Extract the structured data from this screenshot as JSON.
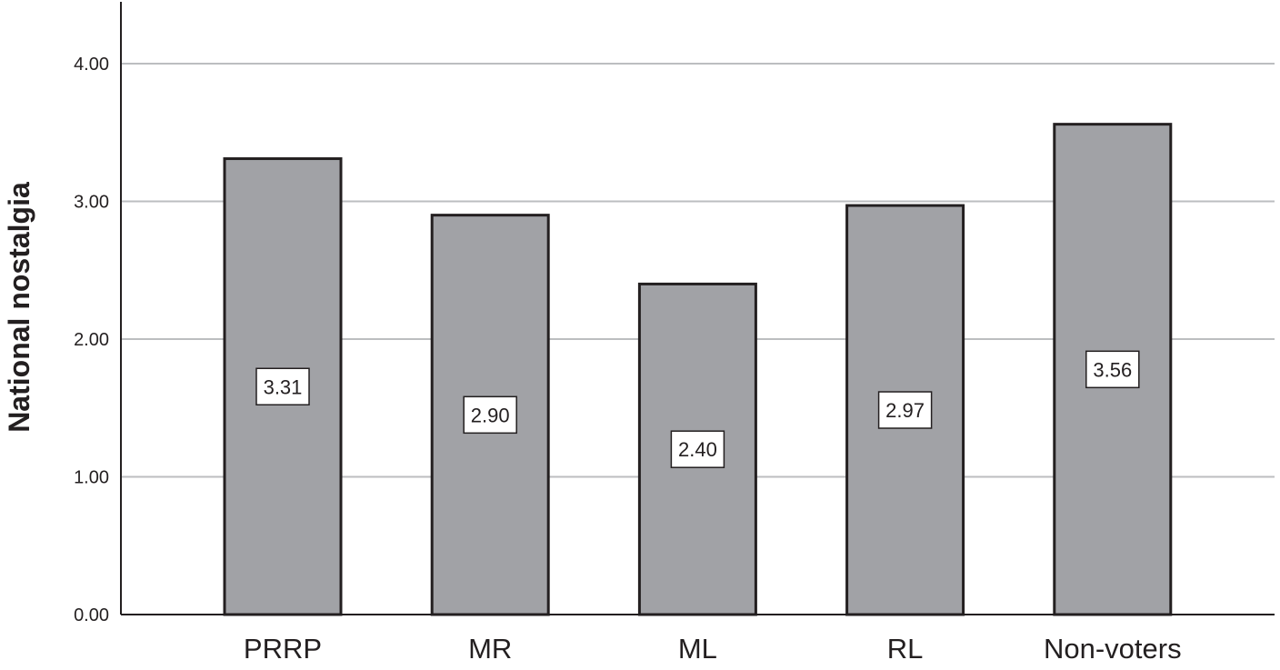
{
  "chart_data": {
    "type": "bar",
    "title": "",
    "xlabel": "",
    "ylabel": "National nostalgia",
    "categories": [
      "PRRP",
      "MR",
      "ML",
      "RL",
      "Non-voters"
    ],
    "values": [
      3.31,
      2.9,
      2.4,
      2.97,
      3.56
    ],
    "data_labels": [
      "3.31",
      "2.90",
      "2.40",
      "2.97",
      "3.56"
    ],
    "yticks": [
      "0.00",
      "1.00",
      "2.00",
      "3.00",
      "4.00"
    ],
    "ylim": [
      0,
      4.4
    ],
    "grid": true,
    "bar_color": "#a1a2a6",
    "bar_edge_color": "#231f20",
    "grid_color": "#bcbec0"
  }
}
